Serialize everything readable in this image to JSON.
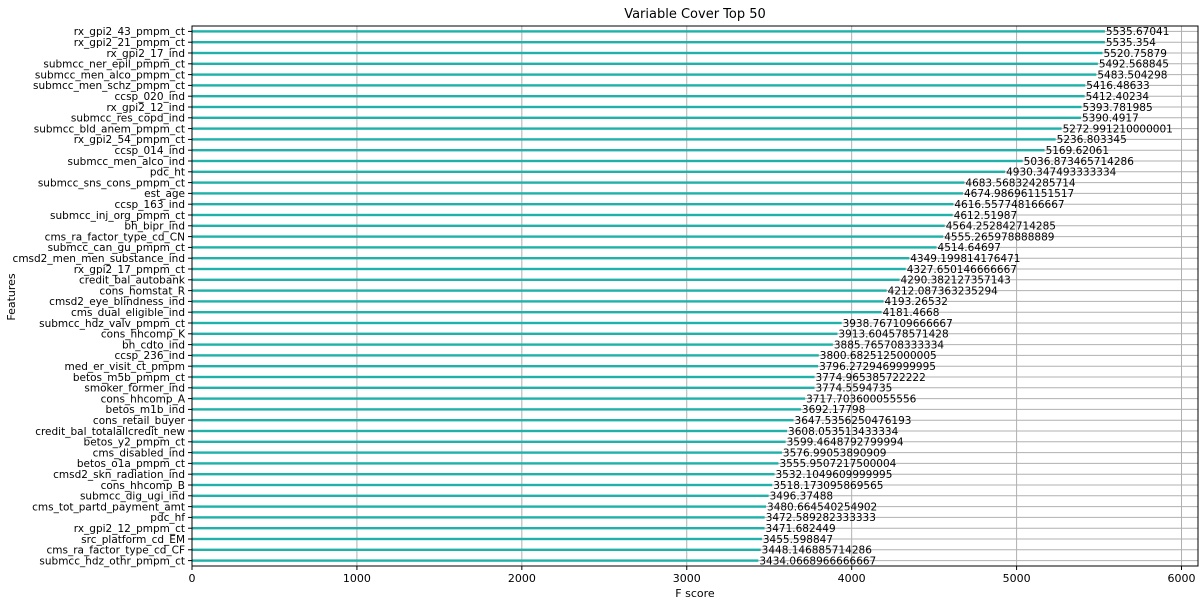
{
  "chart_data": {
    "type": "bar",
    "orientation": "horizontal",
    "title": "Variable Cover Top 50",
    "xlabel": "F score",
    "ylabel": "Features",
    "xlim": [
      0,
      6100
    ],
    "xticks": [
      0,
      1000,
      2000,
      3000,
      4000,
      5000,
      6000
    ],
    "grid": true,
    "bar_color": "#20b2aa",
    "categories": [
      "rx_gpi2_43_pmpm_ct",
      "rx_gpi2_21_pmpm_ct",
      "rx_gpi2_17_ind",
      "submcc_ner_epil_pmpm_ct",
      "submcc_men_alco_pmpm_ct",
      "submcc_men_schz_pmpm_ct",
      "ccsp_020_ind",
      "rx_gpi2_12_ind",
      "submcc_res_copd_ind",
      "submcc_bld_anem_pmpm_ct",
      "rx_gpi2_54_pmpm_ct",
      "ccsp_014_ind",
      "submcc_men_alco_ind",
      "pdc_ht",
      "submcc_sns_cons_pmpm_ct",
      "est_age",
      "ccsp_163_ind",
      "submcc_inj_org_pmpm_ct",
      "bh_bipr_ind",
      "cms_ra_factor_type_cd_CN",
      "submcc_can_gu_pmpm_ct",
      "cmsd2_men_men_substance_ind",
      "rx_gpi2_17_pmpm_ct",
      "credit_bal_autobank",
      "cons_homstat_R",
      "cmsd2_eye_blindness_ind",
      "cms_dual_eligible_ind",
      "submcc_hdz_valv_pmpm_ct",
      "cons_hhcomp_K",
      "bh_cdto_ind",
      "ccsp_236_ind",
      "med_er_visit_ct_pmpm",
      "betos_m5b_pmpm_ct",
      "smoker_former_ind",
      "cons_hhcomp_A",
      "betos_m1b_ind",
      "cons_retail_buyer",
      "credit_bal_totalallcredit_new",
      "betos_y2_pmpm_ct",
      "cms_disabled_ind",
      "betos_o1a_pmpm_ct",
      "cmsd2_skn_radiation_ind",
      "cons_hhcomp_B",
      "submcc_dig_ugi_ind",
      "cms_tot_partd_payment_amt",
      "pdc_hf",
      "rx_gpi2_12_pmpm_ct",
      "src_platform_cd_EM",
      "cms_ra_factor_type_cd_CF",
      "submcc_hdz_othr_pmpm_ct"
    ],
    "values": [
      5535.67041,
      5535.354,
      5520.75879,
      5492.568845,
      5483.504298,
      5416.48633,
      5412.40234,
      5393.781985,
      5390.4917,
      5272.991210000001,
      5236.803345,
      5169.62061,
      5036.873465714286,
      4930.347493333334,
      4683.568324285714,
      4674.986961151517,
      4616.557748166667,
      4612.51987,
      4564.252842714285,
      4555.265978888889,
      4514.64697,
      4349.199814176471,
      4327.650146666667,
      4290.382127357143,
      4212.087363235294,
      4193.26532,
      4181.4668,
      3938.767109666667,
      3913.604578571428,
      3885.765708333334,
      3800.6825125000005,
      3796.2729469999995,
      3774.965385722222,
      3774.5594735,
      3717.703600055556,
      3692.17798,
      3647.5356250476193,
      3608.053513433334,
      3599.4648792799994,
      3576.99053890909,
      3555.9507217500004,
      3532.1049609999995,
      3518.173095869565,
      3496.37488,
      3480.664540254902,
      3472.589282333333,
      3471.682449,
      3455.598847,
      3448.146885714286,
      3434.0668966666667
    ],
    "labels": [
      "5535.67041",
      "5535.354",
      "5520.75879",
      "5492.568845",
      "5483.504298",
      "5416.48633",
      "5412.40234",
      "5393.781985",
      "5390.4917",
      "5272.991210000001",
      "5236.803345",
      "5169.62061",
      "5036.873465714286",
      "4930.347493333334",
      "4683.568324285714",
      "4674.986961151517",
      "4616.557748166667",
      "4612.51987",
      "4564.252842714285",
      "4555.265978888889",
      "4514.64697",
      "4349.199814176471",
      "4327.650146666667",
      "4290.382127357143",
      "4212.087363235294",
      "4193.26532",
      "4181.4668",
      "3938.767109666667",
      "3913.604578571428",
      "3885.765708333334",
      "3800.6825125000005",
      "3796.2729469999995",
      "3774.965385722222",
      "3774.5594735",
      "3717.703600055556",
      "3692.17798",
      "3647.5356250476193",
      "3608.053513433334",
      "3599.4648792799994",
      "3576.99053890909",
      "3555.9507217500004",
      "3532.1049609999995",
      "3518.173095869565",
      "3496.37488",
      "3480.664540254902",
      "3472.589282333333",
      "3471.682449",
      "3455.598847",
      "3448.146885714286",
      "3434.0668966666667"
    ]
  }
}
